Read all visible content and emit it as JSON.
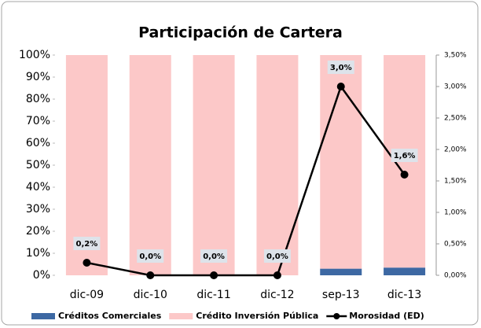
{
  "chart_data": {
    "type": "bar",
    "title": "Participación de Cartera",
    "categories": [
      "dic-09",
      "dic-10",
      "dic-11",
      "dic-12",
      "sep-13",
      "dic-13"
    ],
    "stacked": true,
    "series": [
      {
        "name": "Créditos Comerciales",
        "color": "#3d68a3",
        "values": [
          0,
          0,
          0,
          0,
          3,
          3.5
        ]
      },
      {
        "name": "Crédito Inversión Pública",
        "color": "#fcc8c8",
        "values": [
          100,
          100,
          100,
          100,
          97,
          96.5
        ]
      },
      {
        "name": "Morosidad (ED)",
        "type": "line",
        "axis": "y2",
        "color": "#000000",
        "values": [
          0.2,
          0,
          0,
          0,
          3.0,
          1.6
        ],
        "value_labels": [
          "0,2%",
          "0,0%",
          "0,0%",
          "0,0%",
          "3,0%",
          "1,6%"
        ]
      }
    ],
    "ylim": [
      0,
      100
    ],
    "yticks": [
      {
        "value": 0,
        "label": "0%"
      },
      {
        "value": 10,
        "label": "10%"
      },
      {
        "value": 20,
        "label": "20%"
      },
      {
        "value": 30,
        "label": "30%"
      },
      {
        "value": 40,
        "label": "40%"
      },
      {
        "value": 50,
        "label": "50%"
      },
      {
        "value": 60,
        "label": "60%"
      },
      {
        "value": 70,
        "label": "70%"
      },
      {
        "value": 80,
        "label": "80%"
      },
      {
        "value": 90,
        "label": "90%"
      },
      {
        "value": 100,
        "label": "100%"
      }
    ],
    "y2lim": [
      0,
      3.5
    ],
    "y2ticks": [
      {
        "value": 0,
        "label": "0,00%"
      },
      {
        "value": 0.5,
        "label": "0,50%"
      },
      {
        "value": 1,
        "label": "1,00%"
      },
      {
        "value": 1.5,
        "label": "1,50%"
      },
      {
        "value": 2,
        "label": "2,00%"
      },
      {
        "value": 2.5,
        "label": "2,50%"
      },
      {
        "value": 3,
        "label": "3,00%"
      },
      {
        "value": 3.5,
        "label": "3,50%"
      }
    ],
    "legend": "bottom"
  }
}
